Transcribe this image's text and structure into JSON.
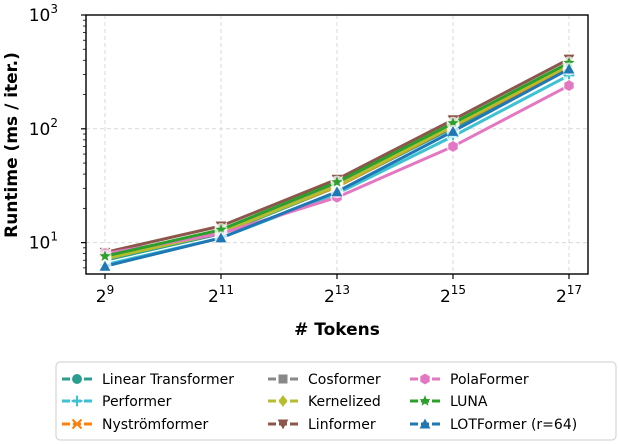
{
  "chart_data": {
    "type": "line",
    "xlabel": "# Tokens",
    "ylabel": "Runtime (ms / iter.)",
    "x_scale": "log2",
    "y_scale": "log10",
    "x": [
      512,
      2048,
      8192,
      32768,
      131072
    ],
    "x_ticks": [
      {
        "base": "2",
        "exp": "9"
      },
      {
        "base": "2",
        "exp": "11"
      },
      {
        "base": "2",
        "exp": "13"
      },
      {
        "base": "2",
        "exp": "15"
      },
      {
        "base": "2",
        "exp": "17"
      }
    ],
    "y_ticks": [
      {
        "value": 10,
        "base": "10",
        "exp": "1"
      },
      {
        "value": 100,
        "base": "10",
        "exp": "2"
      },
      {
        "value": 1000,
        "base": "10",
        "exp": "3"
      }
    ],
    "ylim": [
      5.3,
      1000
    ],
    "grid": true,
    "legend_position": "bottom",
    "series": [
      {
        "name": "Linear Transformer",
        "color": "#2a9d8f",
        "marker": "circle",
        "values": [
          7.0,
          12.0,
          31.0,
          102,
          340
        ]
      },
      {
        "name": "Performer",
        "color": "#3ec1d3",
        "marker": "plus",
        "values": [
          6.4,
          11.0,
          27.0,
          86,
          295
        ]
      },
      {
        "name": "Nyströmformer",
        "color": "#ff7f0e",
        "marker": "x",
        "values": [
          7.8,
          12.5,
          31.0,
          105,
          350
        ]
      },
      {
        "name": "Cosformer",
        "color": "#888888",
        "marker": "square",
        "values": [
          7.5,
          12.5,
          32.0,
          110,
          370
        ]
      },
      {
        "name": "Kernelized",
        "color": "#b5bd2d",
        "marker": "diamond",
        "values": [
          7.2,
          12.2,
          31.5,
          106,
          360
        ]
      },
      {
        "name": "Linformer",
        "color": "#8c564b",
        "marker": "triangle_down",
        "values": [
          8.2,
          14.0,
          36.0,
          120,
          410
        ]
      },
      {
        "name": "PolaFormer",
        "color": "#e377c2",
        "marker": "hexagon",
        "values": [
          8.0,
          12.0,
          25.0,
          70,
          240
        ]
      },
      {
        "name": "LUNA",
        "color": "#2ca02c",
        "marker": "star",
        "values": [
          7.6,
          13.0,
          34.0,
          112,
          380
        ]
      },
      {
        "name": "LOTFormer (r=64)",
        "color": "#1f77b4",
        "marker": "triangle_up",
        "values": [
          6.2,
          11.0,
          28.0,
          95,
          335
        ]
      }
    ]
  }
}
